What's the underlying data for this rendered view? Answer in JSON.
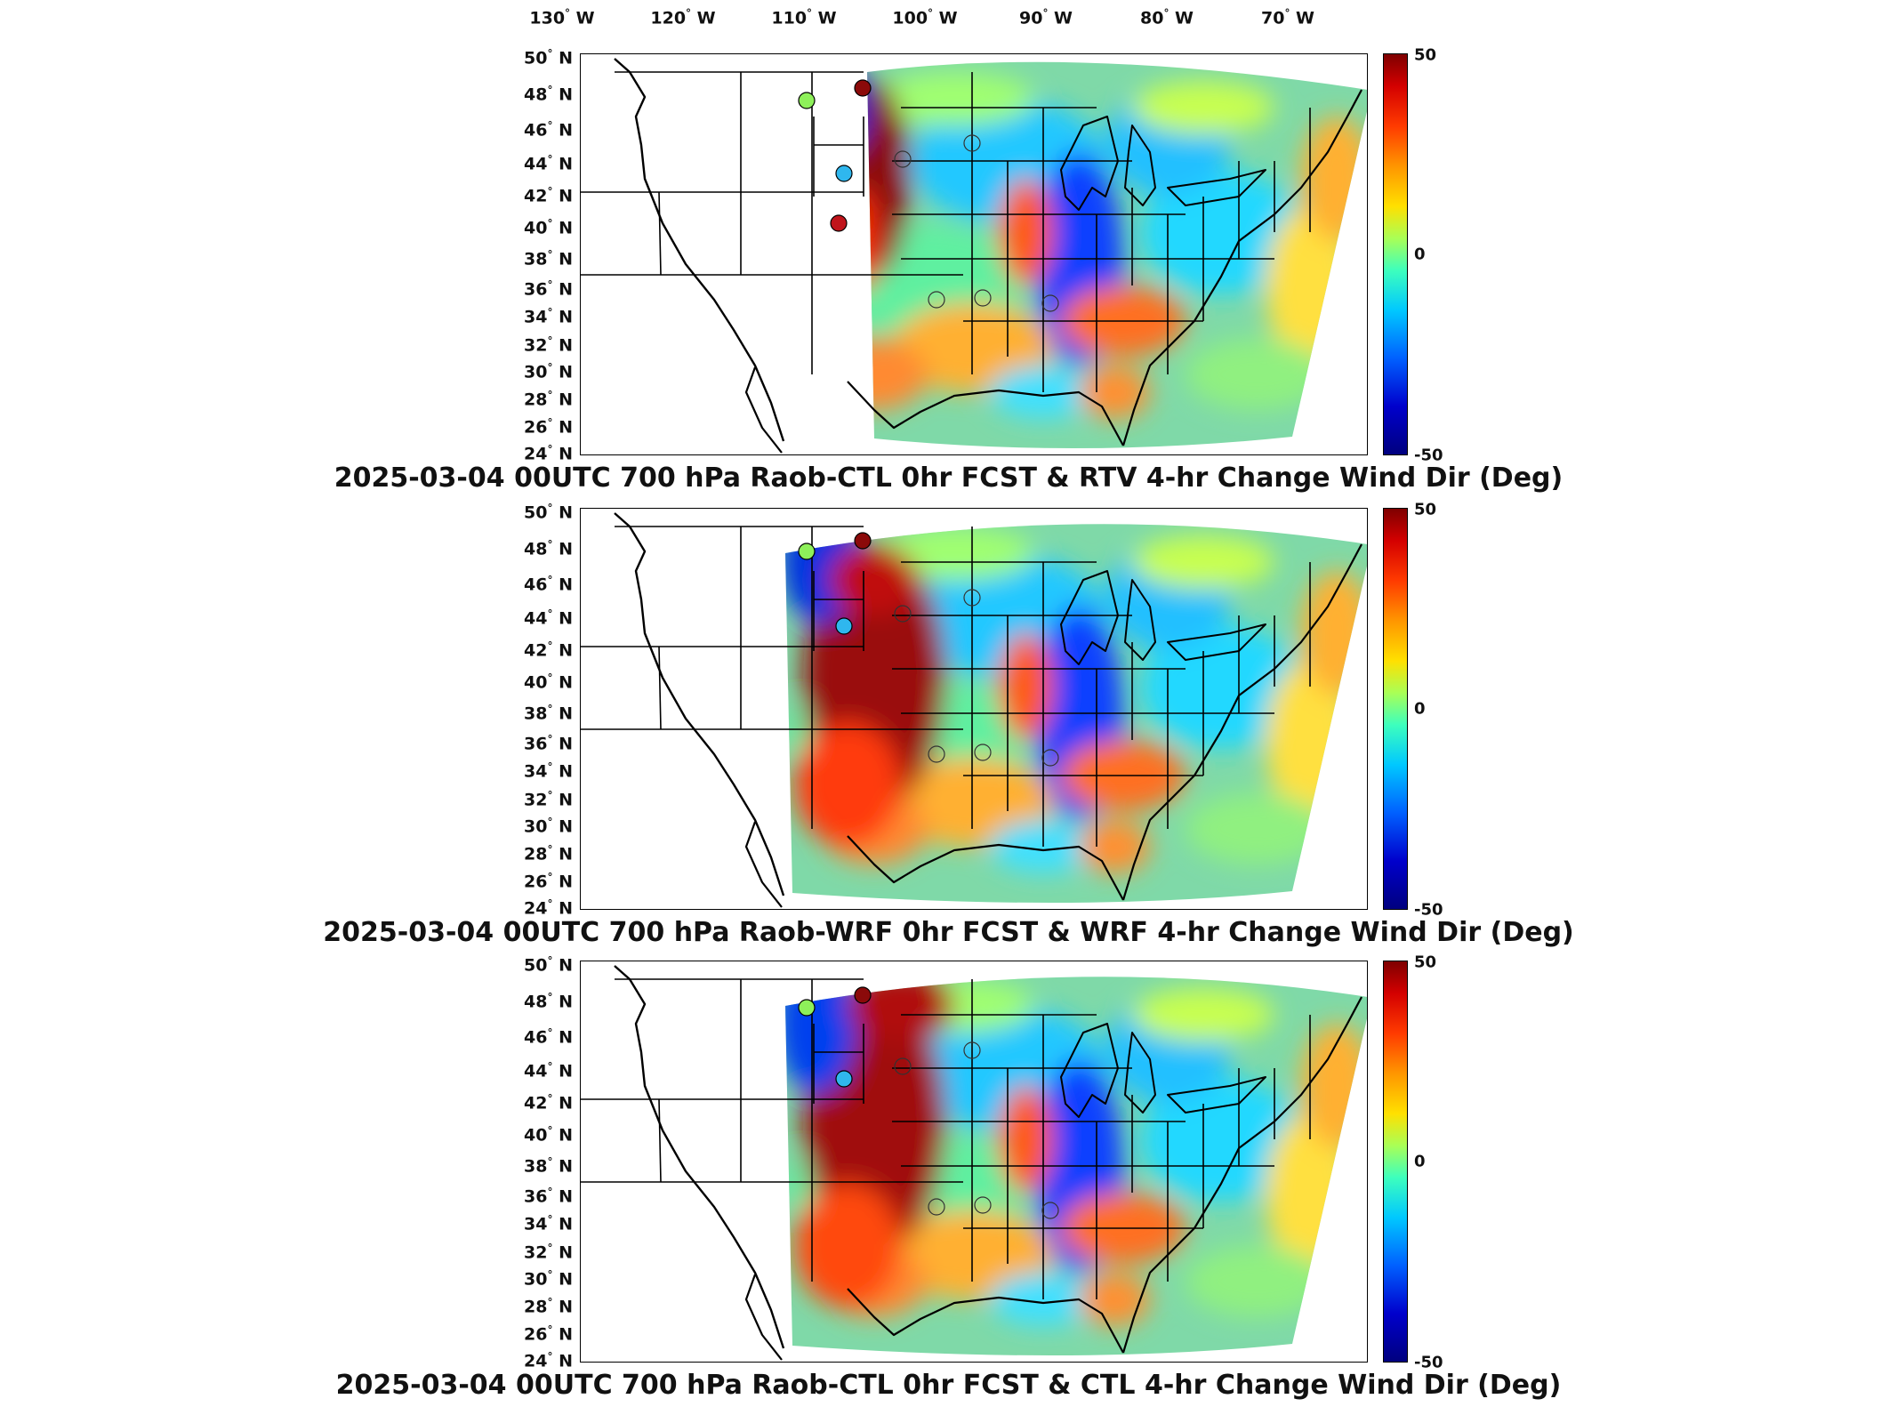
{
  "longitude_labels": [
    "130",
    "120",
    "110",
    "100",
    "90",
    "80",
    "70"
  ],
  "longitude_hemisphere": "W",
  "latitude_labels": [
    "50",
    "48",
    "46",
    "44",
    "42",
    "40",
    "38",
    "36",
    "34",
    "32",
    "30",
    "28",
    "26",
    "24"
  ],
  "latitude_hemisphere": "N",
  "degree_symbol": "°",
  "colorbar": {
    "max_label": "50",
    "mid_label": "0",
    "min_label": "-50",
    "colormap": "jet",
    "range": [
      -50,
      50
    ]
  },
  "panels": [
    {
      "title": "2025-03-04 00UTC 700 hPa Raob-CTL 0hr FCST & RTV 4-hr Change Wind Dir (Deg)"
    },
    {
      "title": "2025-03-04 00UTC 700 hPa Raob-WRF 0hr FCST & WRF 4-hr Change Wind Dir (Deg)"
    },
    {
      "title": "2025-03-04 00UTC 700 hPa Raob-CTL 0hr FCST & CTL 4-hr Change Wind Dir (Deg)"
    }
  ],
  "colors": {
    "field_background": "#7fd9a8",
    "station_red": "#c0141b",
    "station_darkred": "#8b0a0a",
    "station_green": "#8ef05a",
    "station_cyan": "#2fb7ee"
  }
}
